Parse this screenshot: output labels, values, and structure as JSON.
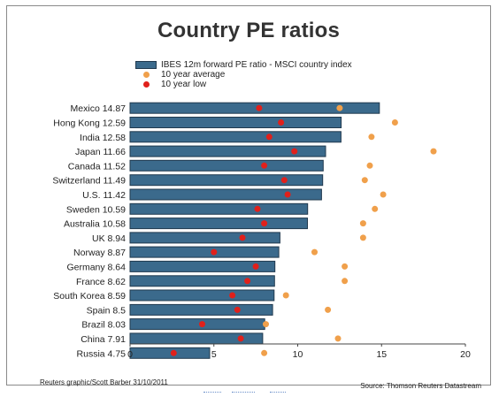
{
  "title": "Country PE ratios",
  "legend": {
    "bar": "IBES 12m forward PE ratio - MSCI country index",
    "avg": "10 year average",
    "low": "10 year low"
  },
  "colors": {
    "bar": "#3b6a8c",
    "bar_border": "#20394e",
    "avg": "#f0a04b",
    "low": "#e0201b"
  },
  "chart_data": {
    "type": "bar",
    "orientation": "horizontal",
    "categories": [
      "Mexico 14.87",
      "Hong Kong 12.59",
      "India 12.58",
      "Japan 11.66",
      "Canada 11.52",
      "Switzerland 11.49",
      "U.S. 11.42",
      "Sweden 10.59",
      "Australia 10.58",
      "UK 8.94",
      "Norway 8.87",
      "Germany 8.64",
      "France 8.62",
      "South Korea 8.59",
      "Spain 8.5",
      "Brazil 8.03",
      "China 7.91",
      "Russia 4.75"
    ],
    "series": [
      {
        "name": "IBES 12m forward PE ratio - MSCI country index",
        "values": [
          14.87,
          12.59,
          12.58,
          11.66,
          11.52,
          11.49,
          11.42,
          10.59,
          10.58,
          8.94,
          8.87,
          8.64,
          8.62,
          8.59,
          8.5,
          8.03,
          7.91,
          4.75
        ]
      },
      {
        "name": "10 year average",
        "values": [
          12.5,
          15.8,
          14.4,
          18.1,
          14.3,
          14.0,
          15.1,
          14.6,
          13.9,
          13.9,
          11.0,
          12.8,
          12.8,
          9.3,
          11.8,
          8.1,
          12.4,
          8.0
        ]
      },
      {
        "name": "10 year low",
        "values": [
          7.7,
          9.0,
          8.3,
          9.8,
          8.0,
          9.2,
          9.4,
          7.6,
          8.0,
          6.7,
          5.0,
          7.5,
          7.0,
          6.1,
          6.4,
          4.3,
          6.6,
          2.6
        ]
      }
    ],
    "xlim": [
      0,
      20
    ],
    "xticks": [
      "0",
      "5",
      "10",
      "15",
      "20"
    ],
    "grid": false
  },
  "footer": {
    "left": "Reuters graphic/Scott Barber 31/10/2011",
    "right": "Source: Thomson Reuters Datastream"
  }
}
